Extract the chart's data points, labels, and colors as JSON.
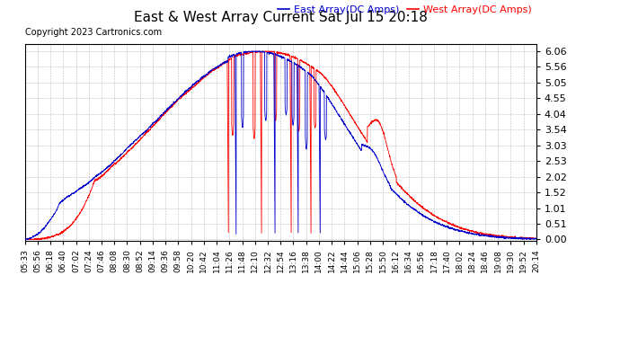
{
  "title": "East & West Array Current Sat Jul 15 20:18",
  "copyright": "Copyright 2023 Cartronics.com",
  "legend_east": "East Array(DC Amps)",
  "legend_west": "West Array(DC Amps)",
  "color_east": "#0000CC",
  "color_west": "#FF0000",
  "color_black": "#000000",
  "background_color": "#FFFFFF",
  "grid_color": "#BBBBBB",
  "yticks": [
    0.0,
    0.51,
    1.01,
    1.52,
    2.02,
    2.53,
    3.03,
    3.54,
    4.04,
    4.55,
    5.05,
    5.56,
    6.06
  ],
  "ylim": [
    -0.05,
    6.3
  ],
  "xtick_labels": [
    "05:33",
    "05:56",
    "06:18",
    "06:40",
    "07:02",
    "07:24",
    "07:46",
    "08:08",
    "08:30",
    "08:52",
    "09:14",
    "09:36",
    "09:58",
    "10:20",
    "10:42",
    "11:04",
    "11:26",
    "11:48",
    "12:10",
    "12:32",
    "12:54",
    "13:16",
    "13:38",
    "14:00",
    "14:22",
    "14:44",
    "15:06",
    "15:28",
    "15:50",
    "16:12",
    "16:34",
    "16:56",
    "17:18",
    "17:40",
    "18:02",
    "18:24",
    "18:46",
    "19:08",
    "19:30",
    "19:52",
    "20:14"
  ]
}
